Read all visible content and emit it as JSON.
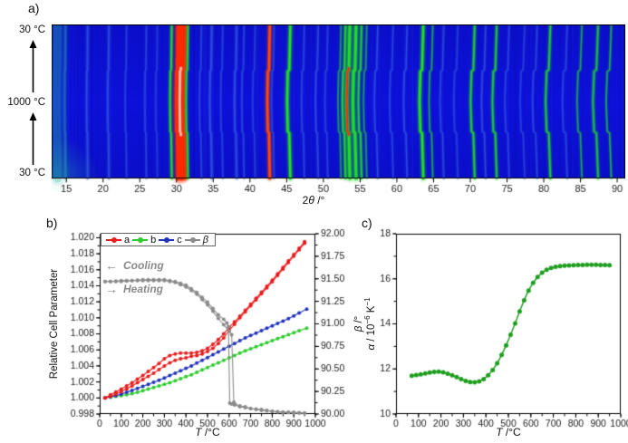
{
  "panel_a": {
    "label": "a)",
    "temp_axis": {
      "top": "30 °C",
      "middle": "1000 °C",
      "bottom": "30 °C"
    },
    "xlabel_parts": {
      "pre": "2",
      "theta": "θ",
      "post": " /°"
    }
  },
  "panel_b": {
    "label": "b)",
    "ylabel_left": "Relative Cell Parameter",
    "ylabel_right_parts": {
      "beta": "β",
      "rest": " /°"
    },
    "xlabel_parts": {
      "t": "T",
      "rest": " /°C"
    },
    "legend": [
      {
        "label": "a",
        "color": "#e81d1d",
        "italic": false
      },
      {
        "label": "b",
        "color": "#2ecc2e",
        "italic": false
      },
      {
        "label": "c",
        "color": "#2233bb",
        "italic": false
      },
      {
        "label": "β",
        "color": "#8a8a8a",
        "italic": true
      }
    ],
    "annotations": {
      "cooling": {
        "arrow": "←",
        "text": "Cooling"
      },
      "heating": {
        "arrow": "→",
        "text": "Heating"
      }
    }
  },
  "panel_c": {
    "label": "c)",
    "ylabel_parts": {
      "alpha": "α",
      "mid1": " / 10",
      "sup1": "−6",
      "mid2": " K",
      "sup2": "−1"
    },
    "xlabel_parts": {
      "t": "T",
      "rest": " /°C"
    }
  },
  "chart_data": [
    {
      "type": "heatmap",
      "title": "Temperature-dependent powder XRD intensity map",
      "xlabel": "2θ /°",
      "x_range": [
        13.0,
        91.1
      ],
      "x_ticks": [
        15,
        20,
        25,
        30,
        35,
        40,
        45,
        50,
        55,
        60,
        65,
        70,
        75,
        80,
        85,
        90
      ],
      "y_axis": "temperature ramp 30 °C → 1000 °C → 30 °C (bottom to top)",
      "transition_temp_c": 600,
      "colors": {
        "background": "#0c10d2",
        "teal": "#28b8a0",
        "softblue": "#3c66e8",
        "green": "#22dd22",
        "red": "#ff2a00",
        "orange": "#ff4a00",
        "white": "#e2e2e2"
      },
      "peaks": [
        {
          "pos": 13.8,
          "c": "teal",
          "w": 9,
          "a": 0.28,
          "bow": 0.1
        },
        {
          "pos": 14.9,
          "c": "teal",
          "w": 2,
          "a": 0.35,
          "bow": 0.12
        },
        {
          "pos": 17.9,
          "c": "softblue",
          "w": 2,
          "a": 0.5,
          "bow": 0.14
        },
        {
          "pos": 20.8,
          "c": "softblue",
          "w": 2,
          "a": 0.5,
          "bow": 0.17
        },
        {
          "pos": 23.2,
          "c": "softblue",
          "w": 1.5,
          "a": 0.4,
          "bow": 0.19
        },
        {
          "pos": 25.9,
          "c": "softblue",
          "w": 1.5,
          "a": 0.45,
          "bow": 0.21
        },
        {
          "pos": 27.4,
          "c": "softblue",
          "w": 1.5,
          "a": 0.35,
          "bow": 0.22
        },
        {
          "pos": 29.35,
          "c": "green",
          "w": 2,
          "a": 0.9,
          "bow": 0.23
        },
        {
          "pos": 30.25,
          "c": "red",
          "w": 4,
          "a": 1,
          "bow": 0.24
        },
        {
          "pos": 30.7,
          "c": "red",
          "w": 4,
          "a": 1,
          "bow": 0.25,
          "core": "white"
        },
        {
          "pos": 31.15,
          "c": "red",
          "w": 3,
          "a": 0.95,
          "bow": 0.25
        },
        {
          "pos": 31.55,
          "c": "green",
          "w": 2,
          "a": 0.8,
          "bow": 0.25
        },
        {
          "pos": 33.4,
          "c": "softblue",
          "w": 1.5,
          "a": 0.45,
          "bow": 0.27
        },
        {
          "pos": 34.8,
          "c": "softblue",
          "w": 2,
          "a": 0.55,
          "bow": 0.28
        },
        {
          "pos": 36.3,
          "c": "softblue",
          "w": 1.5,
          "a": 0.4,
          "bow": 0.29
        },
        {
          "pos": 38.2,
          "c": "softblue",
          "w": 2,
          "a": 0.5,
          "bow": 0.31
        },
        {
          "pos": 39.2,
          "c": "softblue",
          "w": 1.5,
          "a": 0.45,
          "bow": 0.31
        },
        {
          "pos": 40.7,
          "c": "softblue",
          "w": 1.5,
          "a": 0.4,
          "bow": 0.33
        },
        {
          "pos": 42.7,
          "c": "orange",
          "w": 2.5,
          "a": 1,
          "bow": 0.34
        },
        {
          "pos": 43.3,
          "c": "softblue",
          "w": 1.5,
          "a": 0.4,
          "bow": 0.35
        },
        {
          "pos": 45.5,
          "c": "green",
          "w": 2.5,
          "a": 1,
          "bow": 0.45
        },
        {
          "pos": 47.4,
          "c": "softblue",
          "w": 1.5,
          "a": 0.45,
          "bow": 0.38
        },
        {
          "pos": 49.3,
          "c": "softblue",
          "w": 1.5,
          "a": 0.5,
          "bow": 0.39
        },
        {
          "pos": 50.6,
          "c": "softblue",
          "w": 1.5,
          "a": 0.4,
          "bow": 0.4
        },
        {
          "pos": 52.4,
          "c": "green",
          "w": 1.5,
          "a": 0.5,
          "bow": 0.42
        },
        {
          "pos": 53.0,
          "c": "green",
          "w": 2,
          "a": 0.85,
          "bow": 0.42
        },
        {
          "pos": 53.6,
          "c": "green",
          "w": 3,
          "a": 1,
          "bow": 0.43,
          "core": "red"
        },
        {
          "pos": 54.45,
          "c": "green",
          "w": 3,
          "a": 1,
          "bow": 0.44
        },
        {
          "pos": 55.2,
          "c": "green",
          "w": 2,
          "a": 0.8,
          "bow": 0.44
        },
        {
          "pos": 55.9,
          "c": "green",
          "w": 1.5,
          "a": 0.5,
          "bow": 0.45
        },
        {
          "pos": 57.4,
          "c": "softblue",
          "w": 1.5,
          "a": 0.5,
          "bow": 0.46
        },
        {
          "pos": 59.5,
          "c": "softblue",
          "w": 1.5,
          "a": 0.45,
          "bow": 0.48
        },
        {
          "pos": 61.4,
          "c": "softblue",
          "w": 1.5,
          "a": 0.5,
          "bow": 0.49
        },
        {
          "pos": 63.6,
          "c": "green",
          "w": 2.5,
          "a": 1,
          "bow": 0.51
        },
        {
          "pos": 64.9,
          "c": "green",
          "w": 1.5,
          "a": 0.55,
          "bow": 0.52
        },
        {
          "pos": 66.4,
          "c": "softblue",
          "w": 1.5,
          "a": 0.45,
          "bow": 0.53
        },
        {
          "pos": 68.3,
          "c": "softblue",
          "w": 1.5,
          "a": 0.4,
          "bow": 0.55
        },
        {
          "pos": 70.6,
          "c": "green",
          "w": 2,
          "a": 0.8,
          "bow": 0.56
        },
        {
          "pos": 72.1,
          "c": "softblue",
          "w": 1.5,
          "a": 0.5,
          "bow": 0.58
        },
        {
          "pos": 73.6,
          "c": "green",
          "w": 2,
          "a": 0.75,
          "bow": 0.59
        },
        {
          "pos": 75.3,
          "c": "softblue",
          "w": 1.5,
          "a": 0.45,
          "bow": 0.6
        },
        {
          "pos": 77.4,
          "c": "softblue",
          "w": 1.5,
          "a": 0.4,
          "bow": 0.62
        },
        {
          "pos": 79.1,
          "c": "softblue",
          "w": 1.5,
          "a": 0.45,
          "bow": 0.63
        },
        {
          "pos": 80.9,
          "c": "green",
          "w": 2,
          "a": 0.75,
          "bow": 0.65
        },
        {
          "pos": 83.2,
          "c": "softblue",
          "w": 1.5,
          "a": 0.45,
          "bow": 0.67
        },
        {
          "pos": 85.2,
          "c": "green",
          "w": 1.5,
          "a": 0.55,
          "bow": 0.68
        },
        {
          "pos": 87.4,
          "c": "green",
          "w": 2,
          "a": 0.7,
          "bow": 0.7
        },
        {
          "pos": 89.2,
          "c": "green",
          "w": 1.5,
          "a": 0.6,
          "bow": 0.71
        }
      ]
    },
    {
      "type": "line",
      "title": "Relative cell parameters and beta angle vs temperature",
      "xlabel": "T /°C",
      "ylabel_left": "Relative Cell Parameter",
      "ylabel_right": "β /°",
      "x_range": [
        0,
        1000
      ],
      "x_ticks": [
        0,
        100,
        200,
        300,
        400,
        500,
        600,
        700,
        800,
        900,
        1000
      ],
      "x_minor_step": 50,
      "y_left_range": [
        0.998,
        1.0205
      ],
      "y_ticks_left": [
        0.998,
        1.0,
        1.002,
        1.004,
        1.006,
        1.008,
        1.01,
        1.012,
        1.014,
        1.016,
        1.018,
        1.02
      ],
      "y_left_minor_step": 0.001,
      "y_left_decimals": 3,
      "y_right_range": [
        90.0,
        92.0
      ],
      "y_ticks_right": [
        90.0,
        90.25,
        90.5,
        90.75,
        91.0,
        91.25,
        91.5,
        91.75,
        92.0
      ],
      "y_right_minor_step": 0.125,
      "y_right_decimals": 2,
      "legend_position": "top-left inside",
      "series": [
        {
          "name": "b",
          "axis": "left",
          "color": "#2ecc2e",
          "x": [
            25,
            75,
            125,
            175,
            225,
            275,
            325,
            375,
            425,
            475,
            525,
            575,
            625,
            675,
            725,
            775,
            825,
            875,
            925,
            960
          ],
          "y": [
            1.0,
            1.0002,
            1.0004,
            1.0007,
            1.0011,
            1.0015,
            1.0019,
            1.0024,
            1.0029,
            1.0035,
            1.0041,
            1.0047,
            1.0053,
            1.0059,
            1.0064,
            1.0069,
            1.0074,
            1.0079,
            1.0084,
            1.0087
          ]
        },
        {
          "name": "c",
          "axis": "left",
          "color": "#2233bb",
          "x": [
            25,
            75,
            125,
            175,
            225,
            275,
            325,
            375,
            425,
            475,
            525,
            575,
            625,
            675,
            725,
            775,
            825,
            875,
            925,
            960
          ],
          "y": [
            1.0,
            1.0003,
            1.0007,
            1.0012,
            1.0017,
            1.0022,
            1.0028,
            1.0034,
            1.004,
            1.0047,
            1.0054,
            1.0061,
            1.0068,
            1.0075,
            1.0081,
            1.0087,
            1.0093,
            1.0099,
            1.0106,
            1.0111
          ]
        },
        {
          "name": "a (heating)",
          "axis": "left",
          "color": "#e81d1d",
          "x": [
            25,
            50,
            100,
            150,
            200,
            250,
            300,
            325,
            350,
            375,
            400,
            425,
            450,
            475,
            500,
            525,
            550,
            575,
            600,
            625,
            650,
            700,
            750,
            800,
            850,
            900,
            950
          ],
          "y": [
            1.0,
            1.0002,
            1.0008,
            1.0015,
            1.0023,
            1.0031,
            1.004,
            1.0044,
            1.0047,
            1.0049,
            1.005,
            1.0052,
            1.0053,
            1.0055,
            1.0058,
            1.0062,
            1.0068,
            1.0075,
            1.0084,
            1.0092,
            1.01,
            1.0115,
            1.013,
            1.0145,
            1.0161,
            1.0177,
            1.0193
          ]
        },
        {
          "name": "a (cooling)",
          "axis": "left",
          "color": "#e81d1d",
          "x": [
            950,
            900,
            850,
            800,
            750,
            700,
            650,
            625,
            600,
            575,
            550,
            525,
            500,
            475,
            450,
            425,
            400,
            375,
            350,
            325,
            300,
            275,
            250,
            200,
            150,
            100,
            50,
            25
          ],
          "y": [
            1.0195,
            1.0179,
            1.0163,
            1.0147,
            1.0132,
            1.0117,
            1.0102,
            1.0095,
            1.0088,
            1.008,
            1.0073,
            1.0067,
            1.0062,
            1.0059,
            1.0057,
            1.0056,
            1.0056,
            1.0056,
            1.0055,
            1.0053,
            1.0049,
            1.0043,
            1.0038,
            1.0028,
            1.0019,
            1.0011,
            1.0004,
            1.0
          ]
        },
        {
          "name": "β (heating)",
          "axis": "right",
          "color": "#8a8a8a",
          "x": [
            25,
            50,
            100,
            150,
            200,
            250,
            300,
            350,
            400,
            450,
            500,
            525,
            550,
            575,
            600,
            612,
            622,
            627,
            650,
            675,
            700,
            750,
            800,
            850,
            900,
            950
          ],
          "y": [
            91.47,
            91.47,
            91.47,
            91.48,
            91.48,
            91.48,
            91.48,
            91.46,
            91.41,
            91.33,
            91.21,
            91.14,
            91.06,
            90.99,
            90.92,
            90.88,
            90.13,
            90.11,
            90.09,
            90.08,
            90.06,
            90.05,
            90.03,
            90.02,
            90.02,
            90.01
          ]
        },
        {
          "name": "β (cooling)",
          "axis": "right",
          "color": "#8a8a8a",
          "x": [
            950,
            900,
            850,
            800,
            750,
            700,
            675,
            650,
            625,
            612,
            603,
            597,
            590,
            575,
            550,
            525,
            500,
            450,
            400,
            350,
            300,
            250,
            200,
            150,
            100,
            50,
            25
          ],
          "y": [
            90.01,
            90.01,
            90.02,
            90.03,
            90.04,
            90.06,
            90.07,
            90.08,
            90.1,
            90.11,
            90.12,
            90.97,
            91.01,
            91.05,
            91.1,
            91.17,
            91.24,
            91.35,
            91.43,
            91.47,
            91.49,
            91.49,
            91.49,
            91.48,
            91.48,
            91.47,
            91.47
          ]
        }
      ]
    },
    {
      "type": "scatter",
      "title": "Thermal expansion coefficient vs temperature",
      "xlabel": "T /°C",
      "ylabel": "α / 10⁻⁶ K⁻¹",
      "x_range": [
        0,
        1000
      ],
      "x_ticks": [
        0,
        100,
        200,
        300,
        400,
        500,
        600,
        700,
        800,
        900,
        1000
      ],
      "x_minor_step": 50,
      "y_range": [
        10,
        18
      ],
      "y_ticks": [
        10,
        12,
        14,
        16,
        18
      ],
      "y_minor_step": 1,
      "series": [
        {
          "name": "α",
          "color": "#1e9e1e",
          "x": [
            70,
            90,
            110,
            130,
            150,
            170,
            190,
            210,
            230,
            250,
            270,
            290,
            310,
            330,
            350,
            370,
            390,
            410,
            430,
            450,
            470,
            490,
            510,
            530,
            550,
            570,
            590,
            610,
            630,
            650,
            670,
            690,
            710,
            730,
            750,
            770,
            790,
            810,
            830,
            850,
            870,
            890,
            910,
            930,
            950
          ],
          "y": [
            11.7,
            11.73,
            11.76,
            11.8,
            11.84,
            11.87,
            11.88,
            11.85,
            11.79,
            11.72,
            11.64,
            11.55,
            11.47,
            11.42,
            11.41,
            11.45,
            11.55,
            11.72,
            11.95,
            12.25,
            12.62,
            13.05,
            13.52,
            14.02,
            14.55,
            15.05,
            15.48,
            15.82,
            16.08,
            16.27,
            16.4,
            16.48,
            16.53,
            16.56,
            16.58,
            16.59,
            16.6,
            16.61,
            16.61,
            16.62,
            16.62,
            16.62,
            16.61,
            16.61,
            16.6
          ]
        }
      ]
    }
  ]
}
